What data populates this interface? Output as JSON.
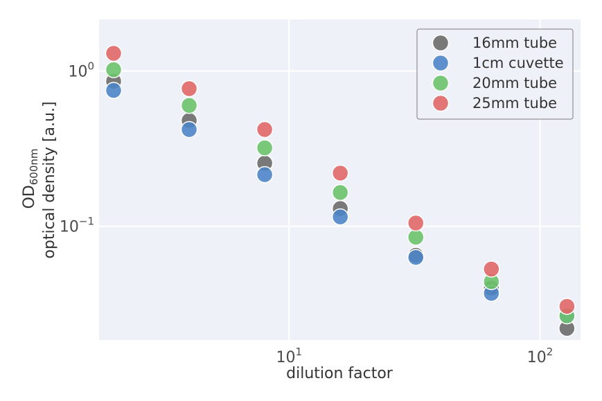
{
  "chart_data": {
    "type": "scatter",
    "x_scale": "log",
    "y_scale": "log",
    "xlim": [
      1.75,
      145
    ],
    "ylim": [
      0.0185,
      2.15
    ],
    "grid": true,
    "legend_position": "top-right",
    "xlabel": "dilution factor",
    "ylabel_main": "OD",
    "ylabel_sub": "600nm",
    "ylabel_line2": "optical density [a.u.]",
    "x_ticks": [
      {
        "value": 10,
        "base": "10",
        "exp": "1"
      },
      {
        "value": 100,
        "base": "10",
        "exp": "2"
      }
    ],
    "y_ticks": [
      {
        "value": 1.0,
        "base": "10",
        "exp": "0"
      },
      {
        "value": 0.1,
        "base": "10",
        "exp": "−1"
      }
    ],
    "x": [
      2,
      4,
      8,
      16,
      32,
      64,
      128
    ],
    "series": [
      {
        "name": "16mm tube",
        "color": "#6b6b6b",
        "values": [
          0.86,
          0.48,
          0.255,
          0.13,
          0.065,
          0.04,
          0.022
        ]
      },
      {
        "name": "1cm cuvette",
        "color": "#4c85c7",
        "values": [
          0.75,
          0.42,
          0.215,
          0.115,
          0.063,
          0.037,
          0.0265
        ]
      },
      {
        "name": "20mm tube",
        "color": "#6cc26a",
        "values": [
          1.02,
          0.6,
          0.32,
          0.165,
          0.085,
          0.044,
          0.0265
        ]
      },
      {
        "name": "25mm tube",
        "color": "#e06767",
        "values": [
          1.3,
          0.77,
          0.42,
          0.22,
          0.105,
          0.053,
          0.0305
        ]
      }
    ]
  }
}
